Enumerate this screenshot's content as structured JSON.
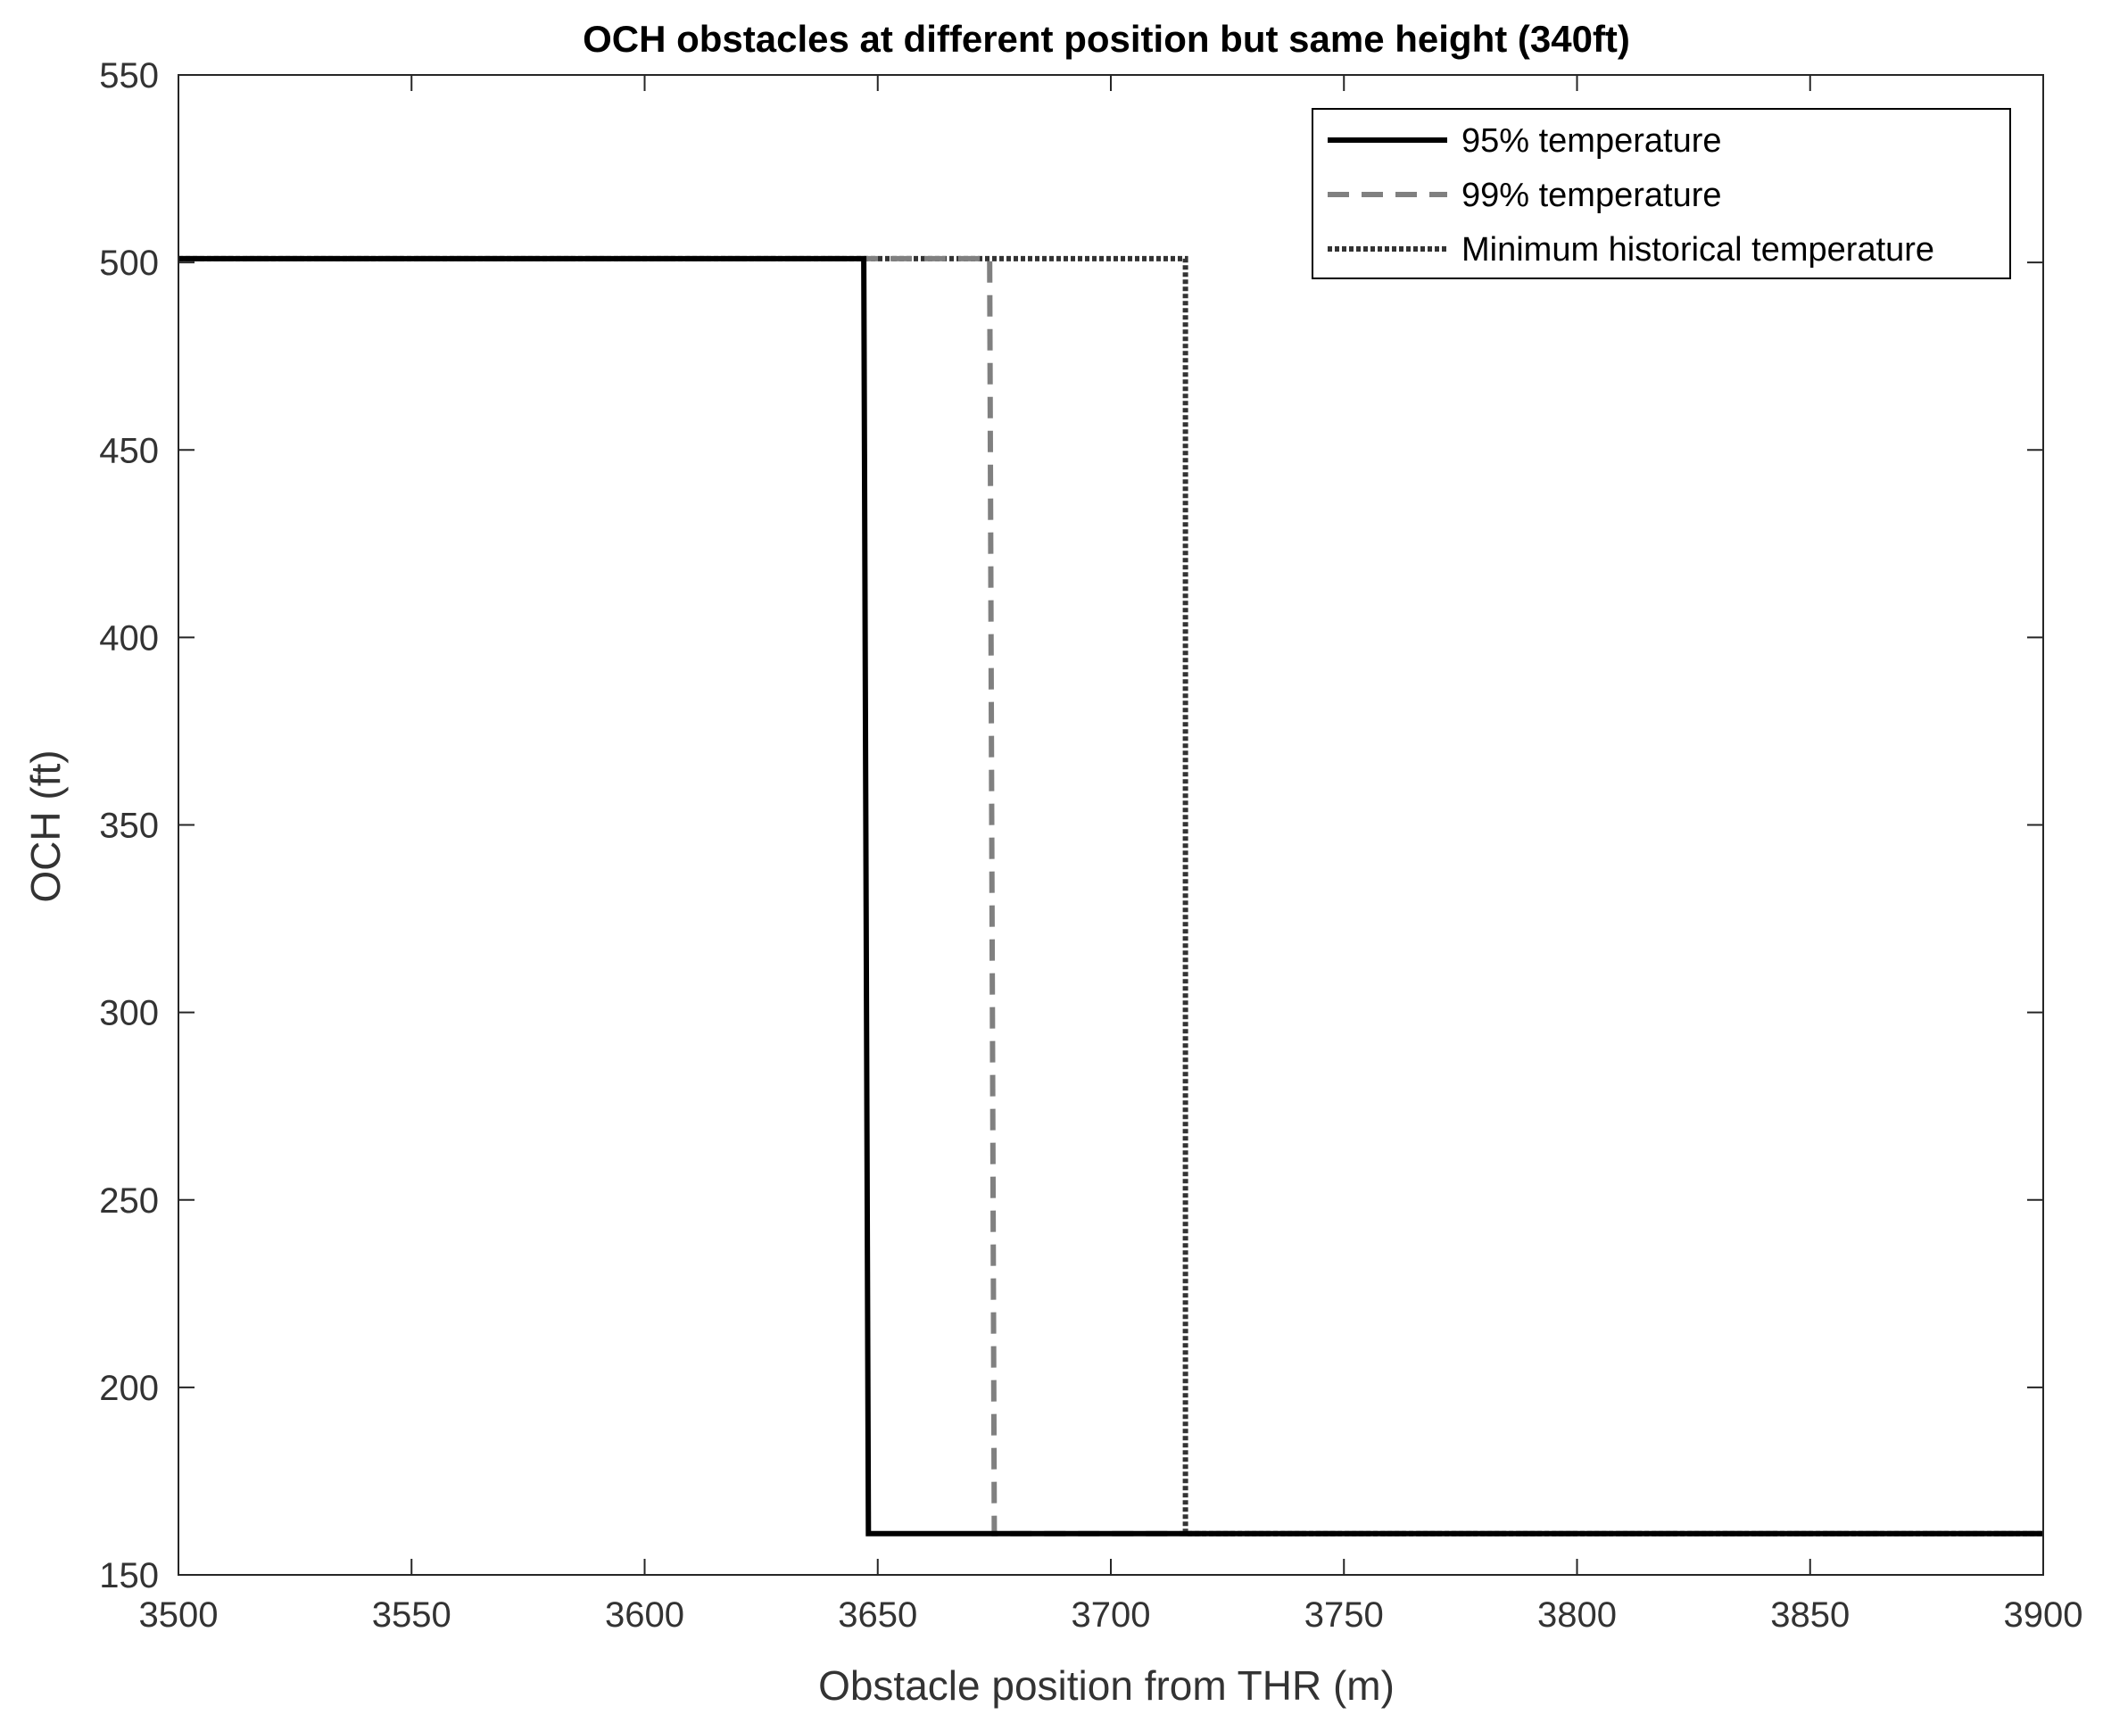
{
  "chart_data": {
    "type": "line",
    "title": "OCH obstacles at different position but same height (340ft)",
    "xlabel": "Obstacle position from THR (m)",
    "ylabel": "OCH (ft)",
    "xlim": [
      3500,
      3900
    ],
    "ylim": [
      150,
      550
    ],
    "xticks": [
      3500,
      3550,
      3600,
      3650,
      3700,
      3750,
      3800,
      3850,
      3900
    ],
    "yticks": [
      150,
      200,
      250,
      300,
      350,
      400,
      450,
      500,
      550
    ],
    "grid": false,
    "legend_position": "top-right",
    "series": [
      {
        "name": "95% temperature",
        "style": "solid",
        "color": "#000000",
        "x": [
          3500,
          3647,
          3648,
          3900
        ],
        "y": [
          501,
          501,
          161,
          161
        ]
      },
      {
        "name": "99% temperature",
        "style": "dashed",
        "color": "#808080",
        "x": [
          3500,
          3674,
          3675,
          3900
        ],
        "y": [
          501,
          501,
          161,
          161
        ]
      },
      {
        "name": "Minimum historical temperature",
        "style": "dotted",
        "color": "#333333",
        "x": [
          3500,
          3716,
          3716,
          3900
        ],
        "y": [
          501,
          501,
          161,
          161
        ]
      }
    ]
  }
}
